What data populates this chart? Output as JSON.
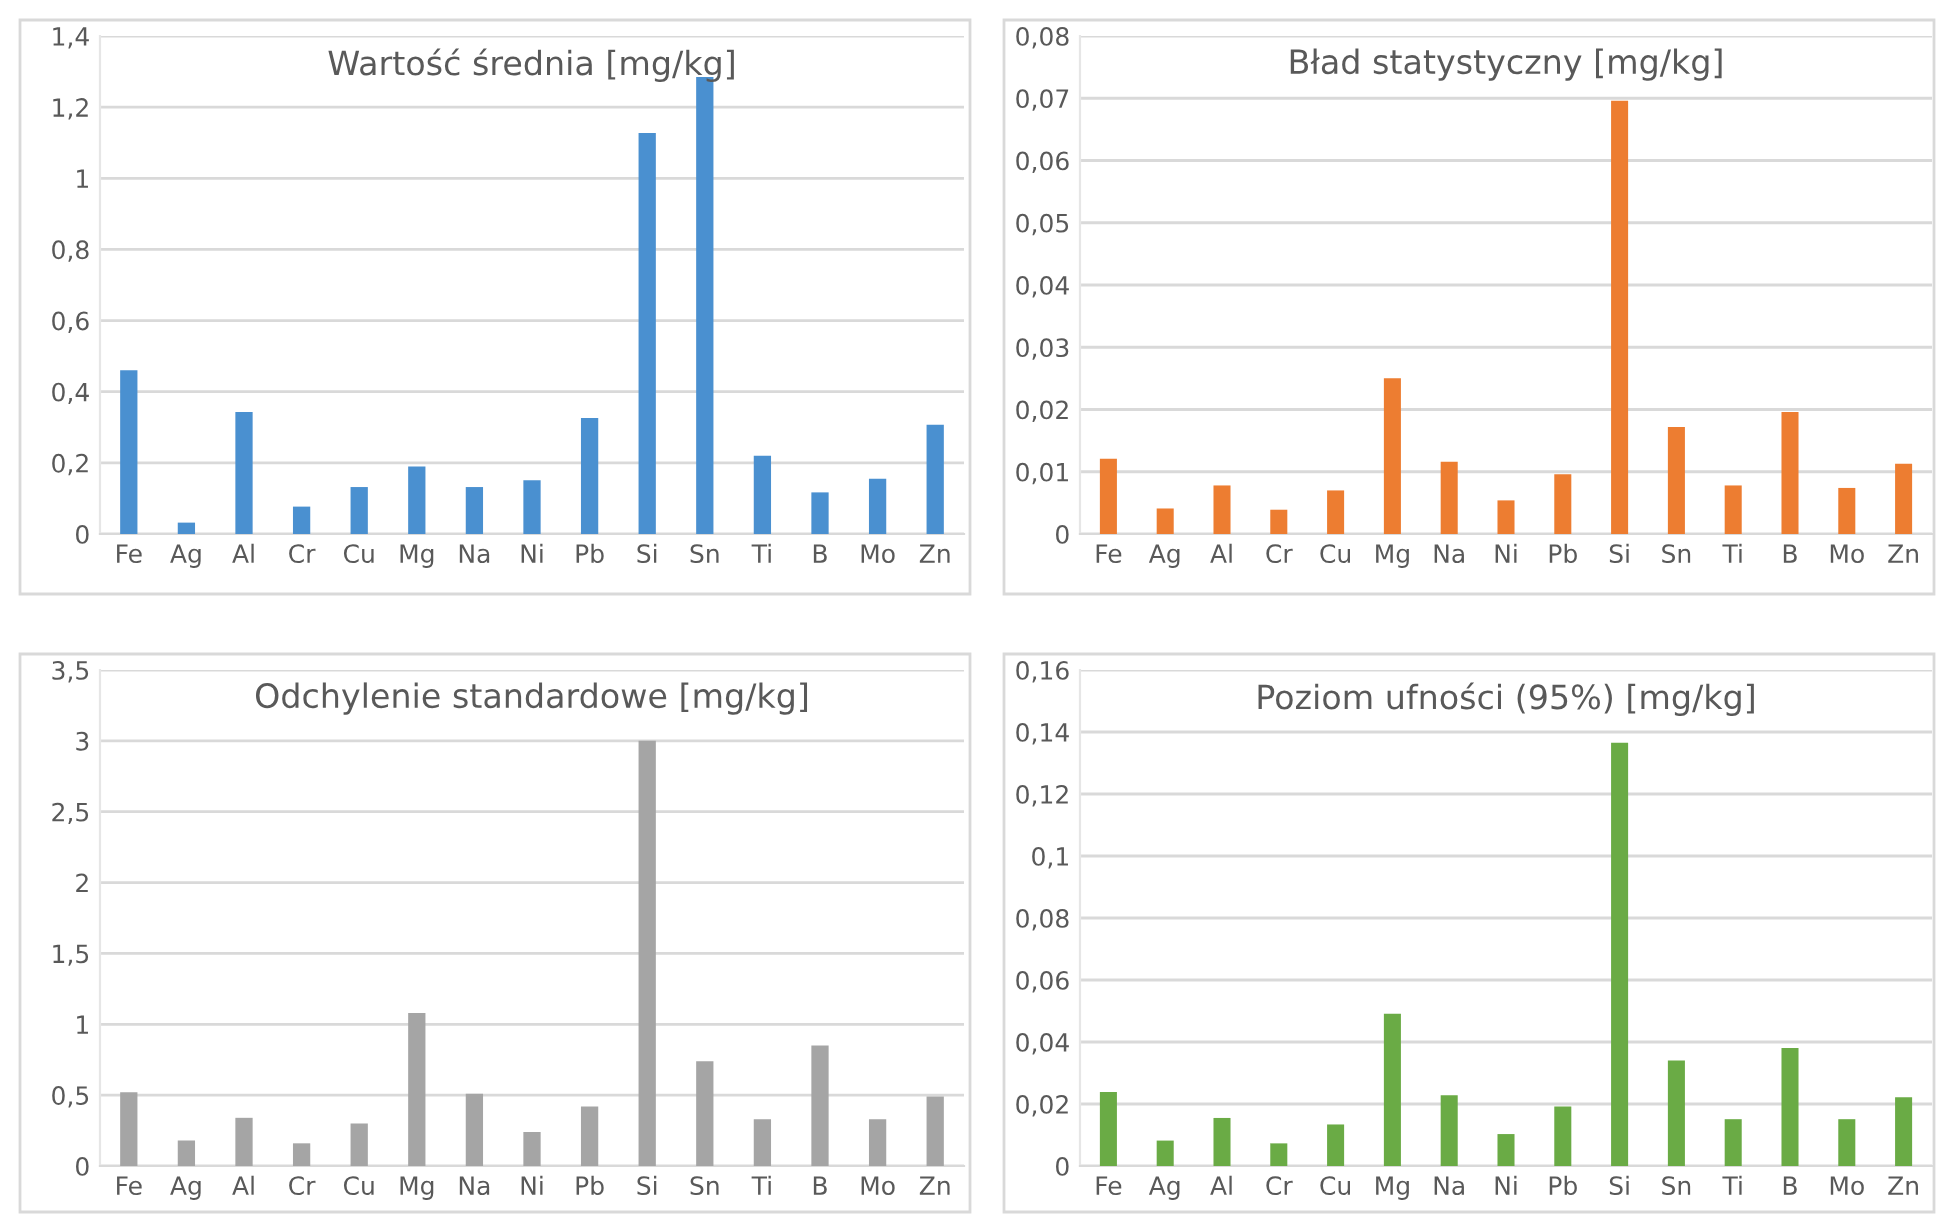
{
  "chart_data": [
    {
      "type": "bar",
      "title": "Wartość średnia [mg/kg]",
      "categories": [
        "Fe",
        "Ag",
        "Al",
        "Cr",
        "Cu",
        "Mg",
        "Na",
        "Ni",
        "Pb",
        "Si",
        "Sn",
        "Ti",
        "B",
        "Mo",
        "Zn"
      ],
      "values": [
        0.46,
        0.032,
        0.343,
        0.077,
        0.132,
        0.19,
        0.132,
        0.151,
        0.326,
        1.127,
        1.285,
        0.22,
        0.117,
        0.155,
        0.307
      ],
      "color": "#4a90d0",
      "ylim": [
        0,
        1.4
      ],
      "yticks": [
        0,
        {
          "value": 0.2,
          "label": "0,2"
        },
        {
          "value": 0.4,
          "label": "0,4"
        },
        {
          "value": 0.6,
          "label": "0,6"
        },
        {
          "value": 0.8,
          "label": "0,8"
        },
        1,
        {
          "value": 1.2,
          "label": "1,2"
        },
        {
          "value": 1.4,
          "label": "1,4"
        }
      ],
      "grid": "y"
    },
    {
      "type": "bar",
      "title": "Bład statystyczny [mg/kg]",
      "categories": [
        "Fe",
        "Ag",
        "Al",
        "Cr",
        "Cu",
        "Mg",
        "Na",
        "Ni",
        "Pb",
        "Si",
        "Sn",
        "Ti",
        "B",
        "Mo",
        "Zn"
      ],
      "values": [
        0.0121,
        0.0041,
        0.0078,
        0.0039,
        0.007,
        0.025,
        0.0116,
        0.0054,
        0.0096,
        0.0696,
        0.0172,
        0.0078,
        0.0196,
        0.0074,
        0.0113
      ],
      "color": "#ed7d31",
      "ylim": [
        0,
        0.08
      ],
      "yticks": [
        0,
        {
          "value": 0.01,
          "label": "0,01"
        },
        {
          "value": 0.02,
          "label": "0,02"
        },
        {
          "value": 0.03,
          "label": "0,03"
        },
        {
          "value": 0.04,
          "label": "0,04"
        },
        {
          "value": 0.05,
          "label": "0,05"
        },
        {
          "value": 0.06,
          "label": "0,06"
        },
        {
          "value": 0.07,
          "label": "0,07"
        },
        {
          "value": 0.08,
          "label": "0,08"
        }
      ],
      "grid": "y"
    },
    {
      "type": "bar",
      "title": "Odchylenie standardowe [mg/kg]",
      "categories": [
        "Fe",
        "Ag",
        "Al",
        "Cr",
        "Cu",
        "Mg",
        "Na",
        "Ni",
        "Pb",
        "Si",
        "Sn",
        "Ti",
        "B",
        "Mo",
        "Zn"
      ],
      "values": [
        0.52,
        0.18,
        0.34,
        0.16,
        0.3,
        1.08,
        0.51,
        0.24,
        0.42,
        3.0,
        0.74,
        0.33,
        0.85,
        0.33,
        0.49
      ],
      "color": "#a5a5a5",
      "ylim": [
        0,
        3.5
      ],
      "yticks": [
        0,
        {
          "value": 0.5,
          "label": "0,5"
        },
        1,
        {
          "value": 1.5,
          "label": "1,5"
        },
        2,
        {
          "value": 2.5,
          "label": "2,5"
        },
        3,
        {
          "value": 3.5,
          "label": "3,5"
        }
      ],
      "grid": "y"
    },
    {
      "type": "bar",
      "title": "Poziom ufności (95%) [mg/kg]",
      "categories": [
        "Fe",
        "Ag",
        "Al",
        "Cr",
        "Cu",
        "Mg",
        "Na",
        "Ni",
        "Pb",
        "Si",
        "Sn",
        "Ti",
        "B",
        "Mo",
        "Zn"
      ],
      "values": [
        0.0239,
        0.0082,
        0.0155,
        0.0073,
        0.0134,
        0.0491,
        0.0228,
        0.0103,
        0.0192,
        0.1365,
        0.034,
        0.0151,
        0.0381,
        0.0151,
        0.0222
      ],
      "color": "#6aab45",
      "ylim": [
        0,
        0.16
      ],
      "yticks": [
        0,
        {
          "value": 0.02,
          "label": "0,02"
        },
        {
          "value": 0.04,
          "label": "0,04"
        },
        {
          "value": 0.06,
          "label": "0,06"
        },
        {
          "value": 0.08,
          "label": "0,08"
        },
        {
          "value": 0.1,
          "label": "0,1"
        },
        {
          "value": 0.12,
          "label": "0,12"
        },
        {
          "value": 0.14,
          "label": "0,14"
        },
        {
          "value": 0.16,
          "label": "0,16"
        }
      ],
      "grid": "y"
    }
  ]
}
